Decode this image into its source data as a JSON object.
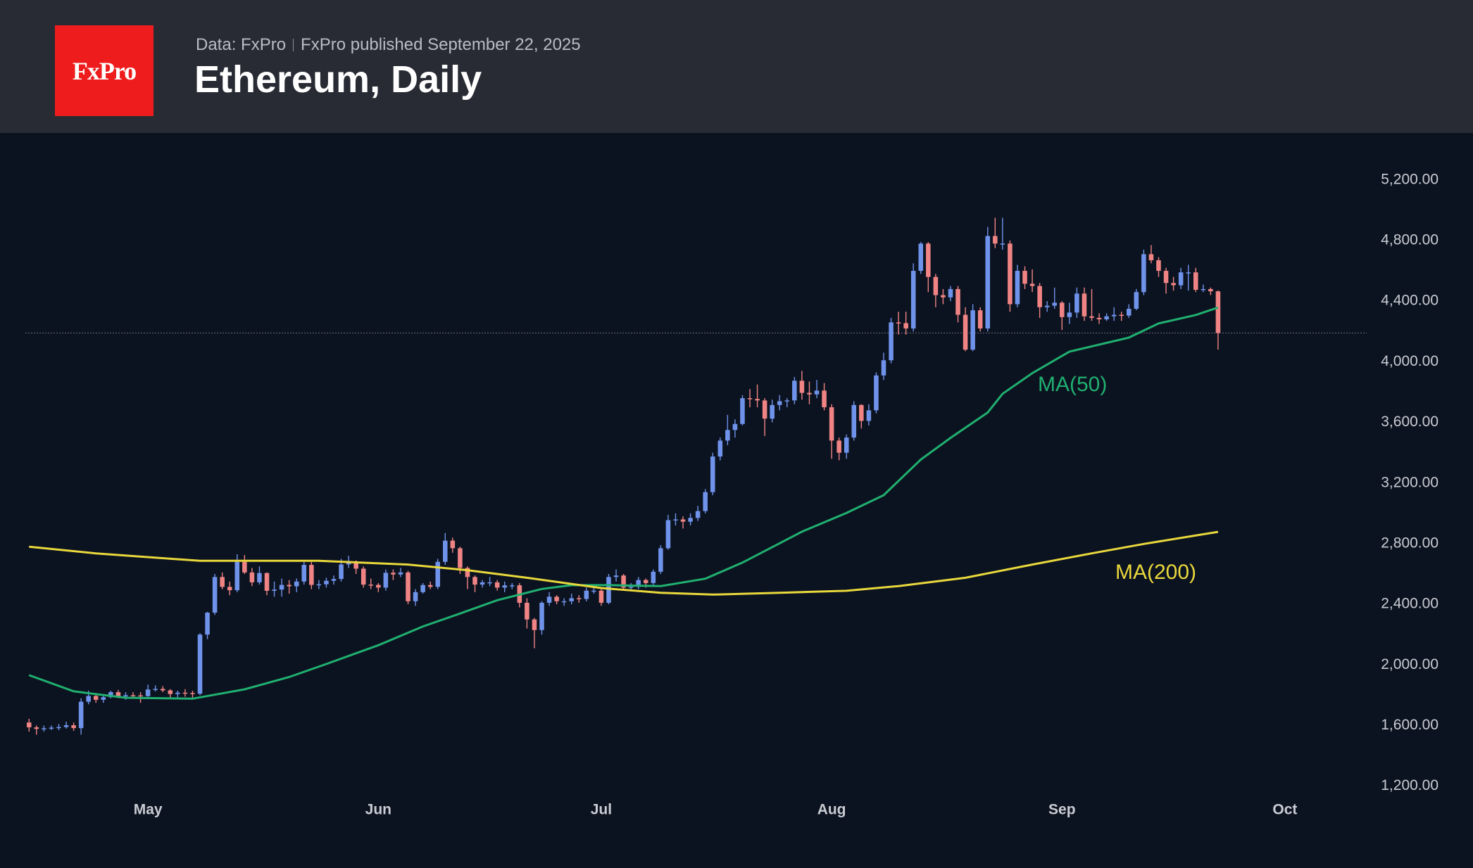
{
  "header": {
    "logo": "FxPro",
    "source": "Data: FxPro",
    "published": "FxPro published September 22, 2025",
    "title": "Ethereum, Daily"
  },
  "chart_data": {
    "type": "candlestick",
    "up_color": "#6f93ea",
    "down_color": "#f08484",
    "open": [
      1620,
      1588,
      1578,
      1582,
      1586,
      1590,
      1602,
      1583,
      1757,
      1795,
      1770,
      1787,
      1820,
      1792,
      1800,
      1799,
      1794,
      1838,
      1842,
      1832,
      1808,
      1817,
      1815,
      1810,
      2200,
      2345,
      2580,
      2515,
      2493,
      2680,
      2610,
      2545,
      2606,
      2489,
      2497,
      2528,
      2519,
      2550,
      2660,
      2528,
      2532,
      2555,
      2567,
      2663,
      2680,
      2635,
      2530,
      2528,
      2510,
      2608,
      2597,
      2610,
      2420,
      2480,
      2527,
      2515,
      2680,
      2820,
      2770,
      2640,
      2580,
      2530,
      2545,
      2545,
      2510,
      2525,
      2525,
      2410,
      2300,
      2230,
      2410,
      2450,
      2420,
      2420,
      2440,
      2435,
      2490,
      2490,
      2410,
      2580,
      2590,
      2510,
      2515,
      2560,
      2540,
      2615,
      2770,
      2955,
      2960,
      2945,
      2970,
      3015,
      3140,
      3375,
      3480,
      3550,
      3590,
      3760,
      3755,
      3745,
      3625,
      3715,
      3740,
      3745,
      3875,
      3795,
      3785,
      3810,
      3700,
      3480,
      3400,
      3500,
      3715,
      3610,
      3680,
      3910,
      4010,
      4260,
      4255,
      4220,
      4600,
      4780,
      4560,
      4440,
      4425,
      4480,
      4310,
      4080,
      4340,
      4220,
      4830,
      4780,
      4780,
      4380,
      4600,
      4515,
      4500,
      4360,
      4370,
      4390,
      4295,
      4325,
      4450,
      4300,
      4290,
      4280,
      4300,
      4310,
      4305,
      4350,
      4460,
      4710,
      4670,
      4600,
      4520,
      4505,
      4590,
      4590,
      4475,
      4480,
      4465
    ],
    "high": [
      1645,
      1600,
      1600,
      1600,
      1610,
      1625,
      1620,
      1780,
      1830,
      1810,
      1800,
      1830,
      1835,
      1820,
      1820,
      1820,
      1870,
      1865,
      1860,
      1840,
      1830,
      1840,
      1830,
      2210,
      2350,
      2600,
      2610,
      2550,
      2730,
      2725,
      2640,
      2650,
      2610,
      2550,
      2570,
      2560,
      2570,
      2680,
      2680,
      2560,
      2575,
      2590,
      2700,
      2720,
      2690,
      2650,
      2570,
      2540,
      2630,
      2630,
      2640,
      2620,
      2500,
      2540,
      2550,
      2700,
      2870,
      2840,
      2780,
      2650,
      2590,
      2560,
      2580,
      2560,
      2550,
      2540,
      2540,
      2440,
      2310,
      2420,
      2480,
      2460,
      2440,
      2470,
      2460,
      2510,
      2520,
      2500,
      2600,
      2630,
      2600,
      2540,
      2580,
      2570,
      2630,
      2790,
      2990,
      3000,
      2980,
      3000,
      3050,
      3160,
      3400,
      3500,
      3650,
      3620,
      3780,
      3820,
      3850,
      3760,
      3750,
      3780,
      3760,
      3900,
      3940,
      3870,
      3880,
      3860,
      3720,
      3500,
      3520,
      3740,
      3720,
      3720,
      3930,
      4060,
      4290,
      4330,
      4330,
      4650,
      4790,
      4790,
      4580,
      4480,
      4500,
      4500,
      4360,
      4380,
      4360,
      4890,
      4950,
      4950,
      4800,
      4640,
      4630,
      4610,
      4520,
      4400,
      4490,
      4400,
      4390,
      4490,
      4490,
      4480,
      4320,
      4320,
      4360,
      4330,
      4380,
      4480,
      4740,
      4770,
      4690,
      4620,
      4560,
      4620,
      4640,
      4620,
      4510,
      4490,
      4470
    ],
    "low": [
      1560,
      1540,
      1560,
      1570,
      1570,
      1580,
      1565,
      1540,
      1740,
      1750,
      1750,
      1780,
      1780,
      1770,
      1790,
      1750,
      1790,
      1825,
      1820,
      1785,
      1780,
      1790,
      1780,
      1800,
      2170,
      2330,
      2500,
      2460,
      2480,
      2600,
      2520,
      2530,
      2460,
      2450,
      2450,
      2470,
      2480,
      2530,
      2500,
      2500,
      2510,
      2530,
      2550,
      2640,
      2600,
      2510,
      2500,
      2480,
      2490,
      2560,
      2580,
      2400,
      2390,
      2470,
      2500,
      2500,
      2660,
      2740,
      2600,
      2500,
      2480,
      2510,
      2520,
      2490,
      2480,
      2500,
      2380,
      2240,
      2110,
      2200,
      2390,
      2400,
      2390,
      2400,
      2410,
      2420,
      2470,
      2390,
      2400,
      2550,
      2490,
      2490,
      2500,
      2510,
      2520,
      2600,
      2760,
      2920,
      2900,
      2920,
      2950,
      3000,
      3120,
      3350,
      3450,
      3500,
      3580,
      3700,
      3700,
      3510,
      3600,
      3680,
      3700,
      3720,
      3750,
      3720,
      3760,
      3680,
      3360,
      3350,
      3360,
      3480,
      3560,
      3580,
      3660,
      3880,
      3990,
      4180,
      4180,
      4200,
      4580,
      4460,
      4360,
      4380,
      4400,
      4260,
      4070,
      4070,
      4200,
      4200,
      4750,
      4740,
      4330,
      4360,
      4480,
      4460,
      4290,
      4330,
      4350,
      4210,
      4250,
      4290,
      4270,
      4270,
      4250,
      4270,
      4270,
      4270,
      4290,
      4340,
      4440,
      4650,
      4560,
      4450,
      4470,
      4480,
      4470,
      4460,
      4460,
      4440,
      4080
    ],
    "close": [
      1588,
      1578,
      1582,
      1586,
      1590,
      1602,
      1583,
      1757,
      1795,
      1770,
      1787,
      1820,
      1792,
      1800,
      1799,
      1794,
      1838,
      1842,
      1832,
      1808,
      1817,
      1815,
      1810,
      2200,
      2345,
      2580,
      2515,
      2493,
      2680,
      2610,
      2545,
      2606,
      2489,
      2497,
      2528,
      2519,
      2550,
      2660,
      2528,
      2532,
      2555,
      2567,
      2663,
      2680,
      2635,
      2530,
      2528,
      2510,
      2608,
      2597,
      2610,
      2420,
      2480,
      2527,
      2515,
      2680,
      2820,
      2770,
      2640,
      2580,
      2530,
      2545,
      2545,
      2510,
      2525,
      2525,
      2410,
      2300,
      2230,
      2410,
      2450,
      2420,
      2420,
      2440,
      2435,
      2490,
      2490,
      2410,
      2580,
      2590,
      2510,
      2515,
      2560,
      2540,
      2615,
      2770,
      2955,
      2960,
      2945,
      2970,
      3015,
      3140,
      3375,
      3480,
      3550,
      3590,
      3760,
      3755,
      3745,
      3625,
      3715,
      3740,
      3745,
      3875,
      3795,
      3785,
      3810,
      3700,
      3480,
      3400,
      3500,
      3715,
      3610,
      3680,
      3910,
      4010,
      4260,
      4255,
      4220,
      4600,
      4780,
      4560,
      4440,
      4425,
      4480,
      4310,
      4080,
      4340,
      4220,
      4830,
      4780,
      4780,
      4380,
      4600,
      4515,
      4500,
      4360,
      4370,
      4390,
      4295,
      4325,
      4450,
      4300,
      4290,
      4280,
      4300,
      4310,
      4305,
      4350,
      4460,
      4710,
      4670,
      4600,
      4520,
      4505,
      4590,
      4590,
      4475,
      4480,
      4465,
      4190
    ],
    "series": [
      {
        "name": "MA(50)",
        "color": "#20b070",
        "x": [
          0,
          6,
          13,
          22,
          29,
          35,
          40,
          47,
          53,
          57,
          63,
          69,
          73,
          78,
          85,
          91,
          96,
          104,
          110,
          115,
          120,
          124,
          129,
          131,
          135,
          140,
          148,
          152,
          157,
          160
        ],
        "values": [
          1932,
          1826,
          1783,
          1777,
          1839,
          1920,
          2006,
          2130,
          2254,
          2322,
          2427,
          2501,
          2526,
          2526,
          2520,
          2569,
          2675,
          2879,
          3003,
          3120,
          3355,
          3498,
          3665,
          3789,
          3925,
          4067,
          4160,
          4253,
          4309,
          4358
        ]
      },
      {
        "name": "MA(200)",
        "color": "#e9d83c",
        "x": [
          0,
          9,
          23,
          39,
          51,
          59,
          67,
          77,
          85,
          92,
          101,
          110,
          117,
          126,
          135,
          143,
          150,
          160
        ],
        "values": [
          2780,
          2736,
          2687,
          2687,
          2662,
          2625,
          2575,
          2507,
          2476,
          2464,
          2476,
          2489,
          2520,
          2575,
          2662,
          2736,
          2798,
          2878
        ]
      }
    ],
    "xlim": [
      -0.5,
      180
    ],
    "xticks": [
      {
        "value": 16,
        "label": "May"
      },
      {
        "value": 47,
        "label": "Jun"
      },
      {
        "value": 77,
        "label": "Jul"
      },
      {
        "value": 108,
        "label": "Aug"
      },
      {
        "value": 139,
        "label": "Sep"
      },
      {
        "value": 169,
        "label": "Oct"
      }
    ],
    "ylim": [
      660,
      5510
    ],
    "yticks": [
      {
        "value": 1200,
        "label": "1,200.00"
      },
      {
        "value": 1600,
        "label": "1,600.00"
      },
      {
        "value": 2000,
        "label": "2,000.00"
      },
      {
        "value": 2400,
        "label": "2,400.00"
      },
      {
        "value": 2800,
        "label": "2,800.00"
      },
      {
        "value": 3200,
        "label": "3,200.00"
      },
      {
        "value": 3600,
        "label": "3,600.00"
      },
      {
        "value": 4000,
        "label": "4,000.00"
      },
      {
        "value": 4400,
        "label": "4,400.00"
      },
      {
        "value": 4800,
        "label": "4,800.00"
      },
      {
        "value": 5200,
        "label": "5,200.00"
      }
    ],
    "grid": false
  }
}
